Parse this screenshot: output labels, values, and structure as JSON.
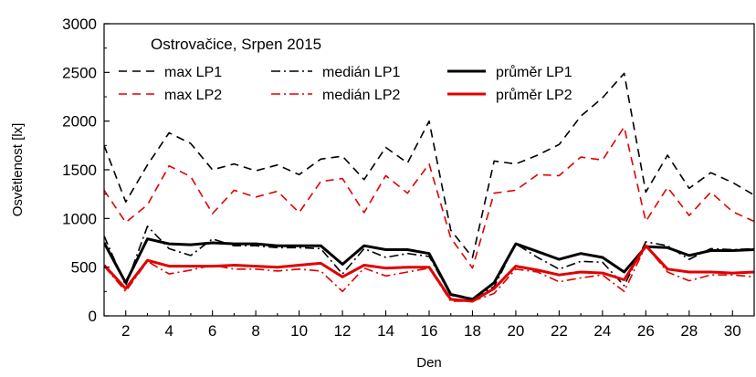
{
  "chart_data": {
    "type": "line",
    "title": "",
    "legend_title": "Ostrovačice, Srpen 2015",
    "legend_placement": "top-left",
    "xlabel": "Den",
    "ylabel": "Osvětlenost [lx]",
    "xlim": [
      1,
      31
    ],
    "ylim": [
      0,
      3000
    ],
    "x_ticks": [
      2,
      4,
      6,
      8,
      10,
      12,
      14,
      16,
      18,
      20,
      22,
      24,
      26,
      28,
      30
    ],
    "y_ticks": [
      0,
      500,
      1000,
      1500,
      2000,
      2500,
      3000
    ],
    "grid": false,
    "x": [
      1,
      2,
      3,
      4,
      5,
      6,
      7,
      8,
      9,
      10,
      11,
      12,
      13,
      14,
      15,
      16,
      17,
      18,
      19,
      20,
      21,
      22,
      23,
      24,
      25,
      26,
      27,
      28,
      29,
      30,
      31
    ],
    "series": [
      {
        "name": "max LP1",
        "color": "#000000",
        "dash": "dashed",
        "width": 1.6,
        "values": [
          1750,
          1170,
          1550,
          1880,
          1770,
          1500,
          1560,
          1490,
          1550,
          1450,
          1610,
          1640,
          1400,
          1730,
          1570,
          2000,
          880,
          600,
          1590,
          1560,
          1650,
          1760,
          2050,
          2240,
          2490,
          1270,
          1650,
          1310,
          1470,
          1370,
          1240
        ]
      },
      {
        "name": "medián LP1",
        "color": "#000000",
        "dash": "dashdot",
        "width": 1.6,
        "values": [
          820,
          310,
          920,
          690,
          620,
          790,
          720,
          720,
          700,
          700,
          690,
          430,
          690,
          600,
          640,
          610,
          210,
          180,
          300,
          740,
          600,
          480,
          560,
          550,
          310,
          760,
          720,
          580,
          690,
          680,
          690
        ]
      },
      {
        "name": "průměr LP1",
        "color": "#000000",
        "dash": "solid",
        "width": 3,
        "values": [
          750,
          340,
          790,
          740,
          730,
          750,
          740,
          740,
          720,
          720,
          720,
          530,
          720,
          680,
          680,
          640,
          220,
          170,
          340,
          740,
          660,
          580,
          640,
          600,
          450,
          710,
          700,
          620,
          670,
          670,
          680
        ]
      },
      {
        "name": "max LP2",
        "color": "#e00000",
        "dash": "dashed",
        "width": 1.6,
        "values": [
          1290,
          960,
          1140,
          1540,
          1430,
          1050,
          1290,
          1220,
          1280,
          1060,
          1380,
          1410,
          1060,
          1440,
          1260,
          1560,
          800,
          490,
          1260,
          1290,
          1450,
          1440,
          1630,
          1600,
          1940,
          970,
          1320,
          1030,
          1270,
          1070,
          970
        ]
      },
      {
        "name": "medián LP2",
        "color": "#e00000",
        "dash": "dashdot",
        "width": 1.6,
        "values": [
          510,
          250,
          560,
          430,
          470,
          520,
          480,
          480,
          460,
          480,
          460,
          250,
          490,
          410,
          450,
          490,
          150,
          150,
          230,
          480,
          450,
          350,
          390,
          420,
          250,
          720,
          450,
          360,
          420,
          420,
          400
        ]
      },
      {
        "name": "průměr LP2",
        "color": "#e00000",
        "dash": "solid",
        "width": 3,
        "values": [
          520,
          280,
          570,
          510,
          510,
          510,
          520,
          510,
          500,
          520,
          540,
          400,
          520,
          490,
          500,
          500,
          170,
          150,
          280,
          510,
          470,
          420,
          450,
          440,
          370,
          720,
          480,
          450,
          450,
          440,
          450
        ]
      }
    ]
  }
}
